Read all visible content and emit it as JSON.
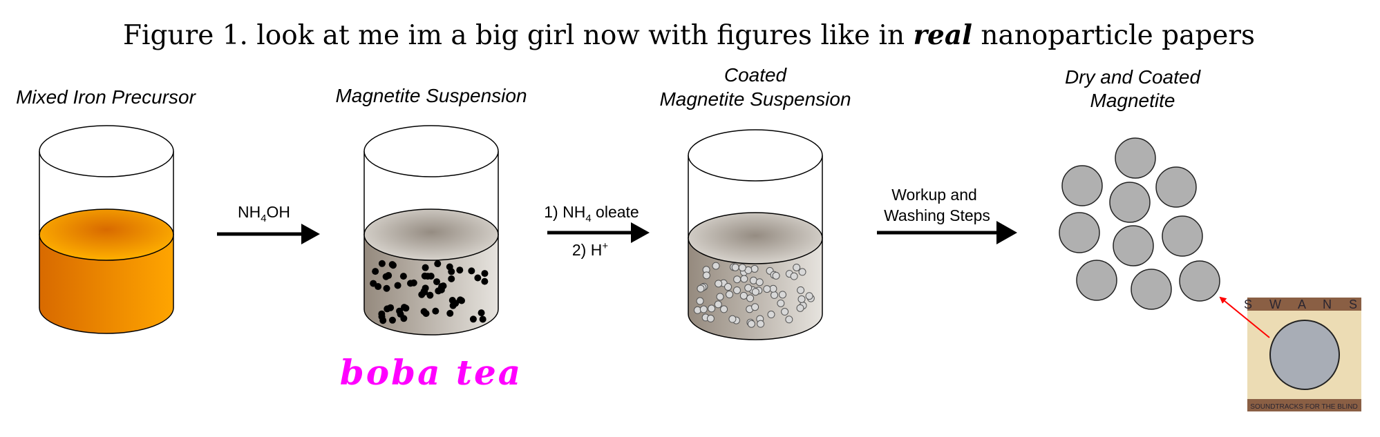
{
  "title": {
    "prefix": "Figure 1. look at me im a big girl now with figures like in ",
    "emphasis": "real",
    "suffix": " nanoparticle papers"
  },
  "stages": [
    {
      "label_lines": [
        "Mixed Iron Precursor"
      ]
    },
    {
      "label_lines": [
        "Magnetite Suspension"
      ]
    },
    {
      "label_lines": [
        "Coated",
        "Magnetite Suspension"
      ]
    },
    {
      "label_lines": [
        "Dry and Coated",
        "Magnetite"
      ]
    }
  ],
  "reactions": {
    "step1": {
      "base": "NH",
      "sub": "4",
      "rest": "OH"
    },
    "step2": {
      "line1_base": "1) NH",
      "line1_sub": "4",
      "line1_rest": " oleate",
      "line2_base": "2) H",
      "line2_sup": "+"
    },
    "step3": {
      "line1": "Workup and",
      "line2": "Washing Steps"
    }
  },
  "annotation": {
    "text": "boba tea",
    "color": "#ff00ff"
  },
  "album": {
    "top": "S W A N S",
    "bottom": "SOUNDTRACKS FOR THE BLIND"
  },
  "colors": {
    "precursor": "#f39a10",
    "magnetite": "#a09890",
    "particle": "#b0b0b0",
    "arrow": "#ff0000"
  }
}
